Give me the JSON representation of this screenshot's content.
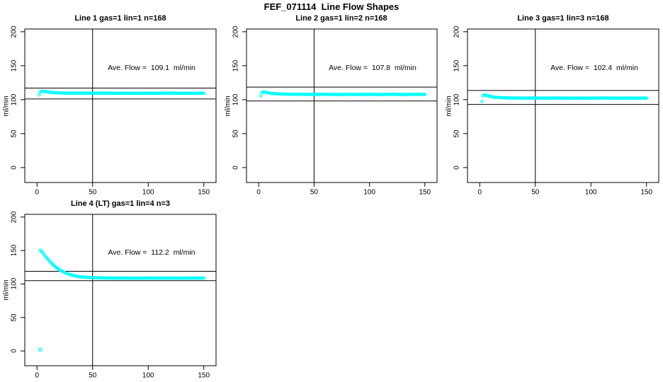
{
  "page_title": "FEF_071114  Line Flow Shapes",
  "colors": {
    "points": "#00FFFF",
    "axis": "#000000",
    "background": "#FFFFFF"
  },
  "chart_data": [
    {
      "type": "scatter",
      "title": "Line 1 gas=1 lin=1 n=168",
      "annotation": "Ave. Flow =  109.1  ml/min",
      "ave_flow_ml_min": 109.1,
      "n": 168,
      "ylabel": "ml/min",
      "xlim": [
        -11,
        161
      ],
      "ylim": [
        -22,
        204
      ],
      "xticks": [
        0,
        50,
        100,
        150
      ],
      "yticks": [
        0,
        50,
        100,
        150,
        200
      ],
      "vline_x": 50,
      "ref_lines": [
        117,
        101
      ],
      "points": [
        [
          2,
          107
        ],
        [
          3,
          111.5
        ],
        [
          4,
          112.2
        ],
        [
          6,
          112.3
        ],
        [
          8,
          111.7
        ],
        [
          10,
          111.1
        ],
        [
          13,
          110.6
        ],
        [
          16,
          110.2
        ],
        [
          20,
          109.9
        ],
        [
          25,
          109.7
        ],
        [
          30,
          109.5
        ],
        [
          40,
          109.6
        ],
        [
          50,
          109.4
        ],
        [
          60,
          109.6
        ],
        [
          70,
          109.3
        ],
        [
          80,
          109.5
        ],
        [
          90,
          109.3
        ],
        [
          100,
          109.5
        ],
        [
          110,
          109.3
        ],
        [
          120,
          109.6
        ],
        [
          130,
          109.3
        ],
        [
          140,
          109.5
        ],
        [
          150,
          109.4
        ]
      ],
      "extra_points": []
    },
    {
      "type": "scatter",
      "title": "Line 2 gas=1 lin=2 n=168",
      "annotation": "Ave. Flow =  107.8  ml/min",
      "ave_flow_ml_min": 107.8,
      "n": 168,
      "ylabel": "ml/min",
      "xlim": [
        -11,
        161
      ],
      "ylim": [
        -22,
        204
      ],
      "xticks": [
        0,
        50,
        100,
        150
      ],
      "yticks": [
        0,
        50,
        100,
        150,
        200
      ],
      "vline_x": 50,
      "ref_lines": [
        118.5,
        98
      ],
      "points": [
        [
          2,
          105.5
        ],
        [
          3,
          110.5
        ],
        [
          4,
          111.2
        ],
        [
          6,
          111
        ],
        [
          8,
          110.3
        ],
        [
          10,
          109.6
        ],
        [
          13,
          109
        ],
        [
          16,
          108.6
        ],
        [
          20,
          108.3
        ],
        [
          25,
          108.1
        ],
        [
          30,
          107.9
        ],
        [
          40,
          107.8
        ],
        [
          50,
          107.7
        ],
        [
          60,
          107.9
        ],
        [
          70,
          107.6
        ],
        [
          80,
          107.8
        ],
        [
          90,
          107.6
        ],
        [
          100,
          107.8
        ],
        [
          110,
          107.6
        ],
        [
          120,
          107.9
        ],
        [
          130,
          107.6
        ],
        [
          140,
          107.8
        ],
        [
          150,
          107.7
        ]
      ],
      "extra_points": []
    },
    {
      "type": "scatter",
      "title": "Line 3 gas=1 lin=3 n=168",
      "annotation": "Ave. Flow =  102.4  ml/min",
      "ave_flow_ml_min": 102.4,
      "n": 168,
      "ylabel": "ml/min",
      "xlim": [
        -11,
        161
      ],
      "ylim": [
        -22,
        204
      ],
      "xticks": [
        0,
        50,
        100,
        150
      ],
      "yticks": [
        0,
        50,
        100,
        150,
        200
      ],
      "vline_x": 50,
      "ref_lines": [
        113.5,
        93
      ],
      "points": [
        [
          2,
          97.5
        ],
        [
          3,
          105.5
        ],
        [
          4,
          107
        ],
        [
          6,
          106.5
        ],
        [
          8,
          105.4
        ],
        [
          10,
          104.5
        ],
        [
          13,
          103.7
        ],
        [
          16,
          103.2
        ],
        [
          20,
          102.9
        ],
        [
          25,
          102.6
        ],
        [
          30,
          102.4
        ],
        [
          40,
          102.3
        ],
        [
          50,
          102.4
        ],
        [
          60,
          102.2
        ],
        [
          70,
          102.4
        ],
        [
          80,
          102.2
        ],
        [
          90,
          102.3
        ],
        [
          100,
          102.2
        ],
        [
          110,
          102.4
        ],
        [
          120,
          102.2
        ],
        [
          130,
          102.3
        ],
        [
          140,
          102.2
        ],
        [
          150,
          102.3
        ]
      ],
      "extra_points": []
    },
    {
      "type": "scatter",
      "title": "Line 4 (LT) gas=1 lin=4 n=3",
      "annotation": "Ave. Flow =  112.2  ml/min",
      "ave_flow_ml_min": 112.2,
      "n": 3,
      "ylabel": "ml/min",
      "xlim": [
        -11,
        161
      ],
      "ylim": [
        -22,
        204
      ],
      "xticks": [
        0,
        50,
        100,
        150
      ],
      "yticks": [
        0,
        50,
        100,
        150,
        200
      ],
      "vline_x": 50,
      "ref_lines": [
        119,
        105
      ],
      "points": [
        [
          3,
          150.5
        ],
        [
          4,
          149
        ],
        [
          5,
          147
        ],
        [
          6,
          144.8
        ],
        [
          8,
          140.5
        ],
        [
          10,
          136.5
        ],
        [
          12,
          132.8
        ],
        [
          14,
          129.5
        ],
        [
          16,
          126.5
        ],
        [
          18,
          123.8
        ],
        [
          20,
          121.5
        ],
        [
          23,
          118.7
        ],
        [
          26,
          116.3
        ],
        [
          29,
          114.4
        ],
        [
          32,
          112.9
        ],
        [
          35,
          111.8
        ],
        [
          38,
          111
        ],
        [
          42,
          110.3
        ],
        [
          46,
          109.8
        ],
        [
          50,
          109.5
        ],
        [
          55,
          109.2
        ],
        [
          60,
          109
        ],
        [
          70,
          108.8
        ],
        [
          80,
          108.9
        ],
        [
          90,
          108.7
        ],
        [
          100,
          108.9
        ],
        [
          110,
          108.7
        ],
        [
          120,
          108.9
        ],
        [
          130,
          108.7
        ],
        [
          140,
          108.9
        ],
        [
          150,
          108.8
        ]
      ],
      "extra_points": [
        [
          3,
          2
        ]
      ]
    }
  ]
}
